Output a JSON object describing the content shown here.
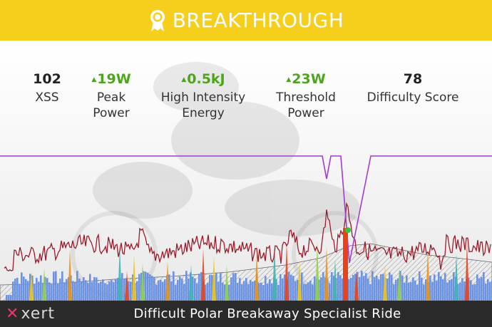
{
  "banner": {
    "title": "BREAKTHROUGH",
    "icon": "award-ribbon-icon",
    "background": "#f5cf1b"
  },
  "stats": [
    {
      "value": "102",
      "label_lines": [
        "XSS"
      ],
      "trend": "none"
    },
    {
      "value": "19W",
      "label_lines": [
        "Peak",
        "Power"
      ],
      "trend": "up"
    },
    {
      "value": "0.5kJ",
      "label_lines": [
        "High Intensity",
        "Energy"
      ],
      "trend": "up"
    },
    {
      "value": "23W",
      "label_lines": [
        "Threshold",
        "Power"
      ],
      "trend": "up"
    },
    {
      "value": "78",
      "label_lines": [
        "Difficulty Score"
      ],
      "trend": "none"
    }
  ],
  "colors": {
    "trend_up": "#4da51e",
    "power_line": "#9b1c2b",
    "mpa_line": "#a23ccc",
    "bars": "#6b93e2",
    "breakthrough": "#e8421a",
    "marker": "#31c43c"
  },
  "footer": {
    "logo": "xert",
    "ride_title": "Difficult Polar Breakaway Specialist Ride"
  }
}
